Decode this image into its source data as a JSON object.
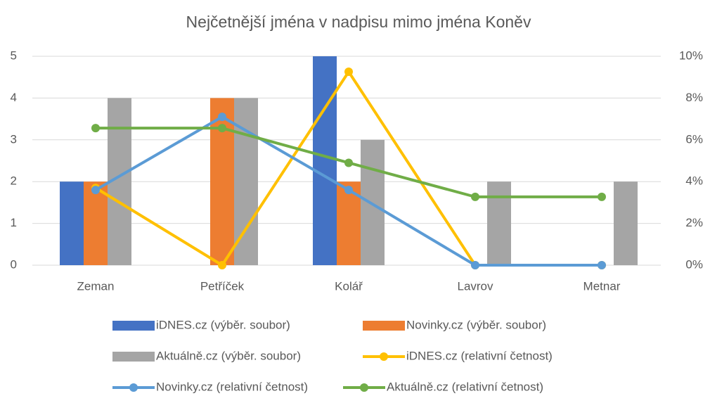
{
  "chart_data": {
    "type": "bar",
    "title": "Nejčetnější jména v nadpisu mimo jména Koněv",
    "categories": [
      "Zeman",
      "Petříček",
      "Kolář",
      "Lavrov",
      "Metnar"
    ],
    "series": [
      {
        "name": "iDNES.cz (výběr. soubor)",
        "type": "bar",
        "color": "#4472C4",
        "values": [
          2,
          0,
          5,
          0,
          0
        ]
      },
      {
        "name": "Novinky.cz (výběr. soubor)",
        "type": "bar",
        "color": "#ED7D31",
        "values": [
          2,
          4,
          2,
          0,
          0
        ]
      },
      {
        "name": "Aktuálně.cz (výběr. soubor)",
        "type": "bar",
        "color": "#A5A5A5",
        "values": [
          4,
          4,
          3,
          2,
          2
        ]
      },
      {
        "name": "iDNES.cz (relativní četnost)",
        "type": "line",
        "axis": "y2",
        "color": "#FFC000",
        "values": [
          3.7,
          0,
          9.26,
          0,
          0
        ]
      },
      {
        "name": "Novinky.cz (relativní četnost)",
        "type": "line",
        "axis": "y2",
        "color": "#5B9BD5",
        "values": [
          3.6,
          7.1,
          3.6,
          0,
          0
        ]
      },
      {
        "name": "Aktuálně.cz (relativní četnost)",
        "type": "line",
        "axis": "y2",
        "color": "#70AD47",
        "values": [
          6.56,
          6.56,
          4.9,
          3.27,
          3.27
        ]
      }
    ],
    "ylim": [
      0,
      5
    ],
    "yticks": [
      0,
      1,
      2,
      3,
      4,
      5
    ],
    "y2lim": [
      0,
      10
    ],
    "y2ticks": [
      {
        "value": 0,
        "label": "0%"
      },
      {
        "value": 2,
        "label": "2%"
      },
      {
        "value": 4,
        "label": "4%"
      },
      {
        "value": 6,
        "label": "6%"
      },
      {
        "value": 8,
        "label": "8%"
      },
      {
        "value": 10,
        "label": "10%"
      }
    ],
    "grid": true,
    "legend": "bottom"
  }
}
